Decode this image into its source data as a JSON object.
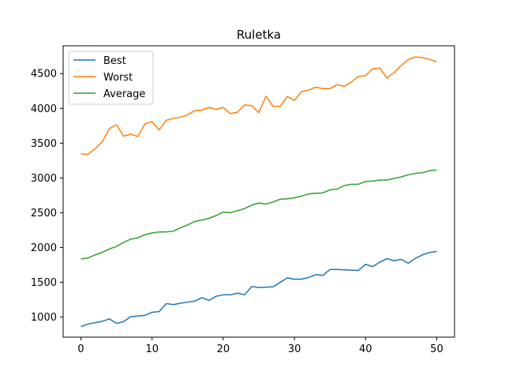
{
  "chart_data": {
    "type": "line",
    "title": "Ruletka",
    "xlabel": "",
    "ylabel": "",
    "xlim": [
      -2.5,
      52.5
    ],
    "ylim": [
      712,
      4900
    ],
    "xticks": [
      0,
      10,
      20,
      30,
      40,
      50
    ],
    "yticks": [
      1000,
      1500,
      2000,
      2500,
      3000,
      3500,
      4000,
      4500
    ],
    "grid": false,
    "legend_position": "top-left",
    "x": [
      0,
      1,
      2,
      3,
      4,
      5,
      6,
      7,
      8,
      9,
      10,
      11,
      12,
      13,
      14,
      15,
      16,
      17,
      18,
      19,
      20,
      21,
      22,
      23,
      24,
      25,
      26,
      27,
      28,
      29,
      30,
      31,
      32,
      33,
      34,
      35,
      36,
      37,
      38,
      39,
      40,
      41,
      42,
      43,
      44,
      45,
      46,
      47,
      48,
      49,
      50
    ],
    "series": [
      {
        "name": "Best",
        "color": "#1f77b4",
        "values": [
          865,
          900,
          920,
          940,
          975,
          910,
          935,
          1005,
          1015,
          1025,
          1070,
          1080,
          1195,
          1180,
          1200,
          1215,
          1230,
          1280,
          1240,
          1300,
          1320,
          1320,
          1345,
          1320,
          1440,
          1425,
          1430,
          1435,
          1500,
          1565,
          1545,
          1545,
          1570,
          1610,
          1600,
          1685,
          1685,
          1680,
          1675,
          1670,
          1760,
          1725,
          1790,
          1840,
          1810,
          1830,
          1775,
          1845,
          1895,
          1930,
          1945
        ]
      },
      {
        "name": "Worst",
        "color": "#ff7f0e",
        "values": [
          3345,
          3340,
          3420,
          3520,
          3710,
          3765,
          3600,
          3630,
          3595,
          3780,
          3810,
          3690,
          3830,
          3855,
          3875,
          3905,
          3970,
          3975,
          4015,
          3985,
          4015,
          3925,
          3945,
          4050,
          4040,
          3940,
          4175,
          4030,
          4030,
          4170,
          4115,
          4240,
          4265,
          4305,
          4285,
          4285,
          4340,
          4320,
          4380,
          4460,
          4470,
          4570,
          4580,
          4435,
          4515,
          4615,
          4700,
          4740,
          4730,
          4705,
          4670
        ]
      },
      {
        "name": "Average",
        "color": "#2ca02c",
        "values": [
          1835,
          1850,
          1895,
          1930,
          1980,
          2015,
          2075,
          2120,
          2140,
          2185,
          2210,
          2225,
          2225,
          2235,
          2285,
          2325,
          2375,
          2395,
          2420,
          2460,
          2510,
          2500,
          2530,
          2560,
          2610,
          2640,
          2625,
          2655,
          2695,
          2700,
          2715,
          2740,
          2770,
          2780,
          2785,
          2830,
          2840,
          2890,
          2910,
          2910,
          2950,
          2955,
          2970,
          2970,
          2995,
          3015,
          3045,
          3065,
          3075,
          3105,
          3115
        ]
      }
    ]
  }
}
